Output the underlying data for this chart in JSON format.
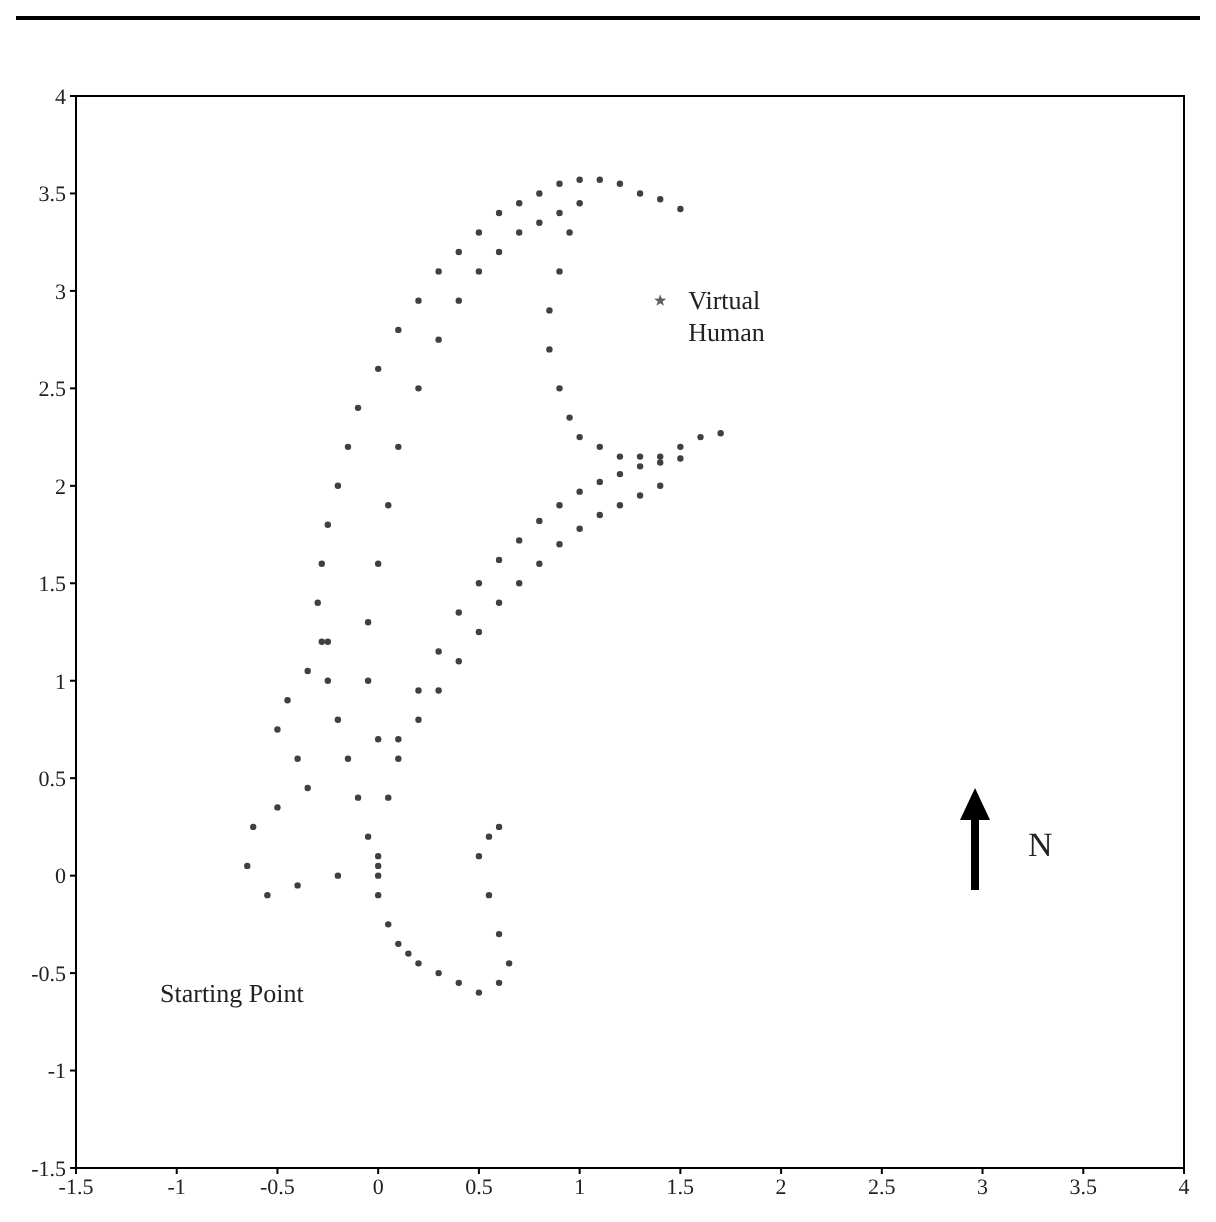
{
  "chart_data": {
    "type": "scatter",
    "marker": "circle",
    "xlim": [
      -1.5,
      4
    ],
    "ylim": [
      -1.5,
      4
    ],
    "xticks": [
      -1.5,
      -1,
      -0.5,
      0,
      0.5,
      1,
      1.5,
      2,
      2.5,
      3,
      3.5,
      4
    ],
    "yticks": [
      -1.5,
      -1,
      -0.5,
      0,
      0.5,
      1,
      1.5,
      2,
      2.5,
      3,
      3.5,
      4
    ],
    "annotations": [
      {
        "text": "Virtual Human",
        "x": 1.4,
        "y": 2.95
      },
      "Starting Point",
      "N"
    ],
    "series": [
      {
        "color": "#404040",
        "x": [
          0,
          -0.05,
          -0.1,
          -0.15,
          -0.2,
          -0.25,
          -0.28,
          -0.3,
          -0.28,
          -0.25,
          -0.2,
          -0.15,
          -0.1,
          0,
          0.1,
          0.2,
          0.3,
          0.4,
          0.5,
          0.6,
          0.7,
          0.8,
          0.9,
          1.0,
          1.1,
          1.2,
          1.3,
          1.4,
          1.5
        ],
        "values": [
          0,
          0.2,
          0.4,
          0.6,
          0.8,
          1.0,
          1.2,
          1.4,
          1.6,
          1.8,
          2.0,
          2.2,
          2.4,
          2.6,
          2.8,
          2.95,
          3.1,
          3.2,
          3.3,
          3.4,
          3.45,
          3.5,
          3.55,
          3.57,
          3.57,
          3.55,
          3.5,
          3.47,
          3.42
        ]
      },
      {
        "color": "#404040",
        "x": [
          0.0,
          -0.05,
          -0.05,
          0,
          0.05,
          0.1,
          0.2,
          0.3,
          0.4,
          0.5,
          0.6,
          0.7,
          0.8,
          0.9
        ],
        "values": [
          0.7,
          1.0,
          1.3,
          1.6,
          1.9,
          2.2,
          2.5,
          2.75,
          2.95,
          3.1,
          3.2,
          3.3,
          3.35,
          3.4
        ]
      },
      {
        "color": "#404040",
        "x": [
          1.0,
          0.95,
          0.9,
          0.85,
          0.85,
          0.9,
          0.95,
          1.0,
          1.1,
          1.2,
          1.3,
          1.4,
          1.5,
          1.6,
          1.7
        ],
        "values": [
          3.45,
          3.3,
          3.1,
          2.9,
          2.7,
          2.5,
          2.35,
          2.25,
          2.2,
          2.15,
          2.15,
          2.15,
          2.2,
          2.25,
          2.27
        ]
      },
      {
        "color": "#404040",
        "x": [
          0,
          0.05,
          0.1,
          0.2,
          0.3,
          0.4,
          0.5,
          0.6,
          0.7,
          0.8,
          0.9,
          1.0,
          1.1,
          1.2,
          1.3,
          1.4,
          1.5
        ],
        "values": [
          0.1,
          0.4,
          0.7,
          0.95,
          1.15,
          1.35,
          1.5,
          1.62,
          1.72,
          1.82,
          1.9,
          1.97,
          2.02,
          2.06,
          2.1,
          2.12,
          2.14
        ]
      },
      {
        "color": "#404040",
        "x": [
          0.1,
          0.2,
          0.3,
          0.4,
          0.5,
          0.6,
          0.7,
          0.8,
          0.9,
          1.0,
          1.1,
          1.2,
          1.3,
          1.4
        ],
        "values": [
          0.6,
          0.8,
          0.95,
          1.1,
          1.25,
          1.4,
          1.5,
          1.6,
          1.7,
          1.78,
          1.85,
          1.9,
          1.95,
          2.0
        ]
      },
      {
        "color": "#404040",
        "x": [
          0,
          -0.2,
          -0.4,
          -0.55,
          -0.65,
          -0.62,
          -0.5,
          -0.35,
          -0.4,
          -0.5,
          -0.45,
          -0.35,
          -0.25
        ],
        "values": [
          0.05,
          0.0,
          -0.05,
          -0.1,
          0.05,
          0.25,
          0.35,
          0.45,
          0.6,
          0.75,
          0.9,
          1.05,
          1.2
        ]
      },
      {
        "color": "#404040",
        "x": [
          0,
          0.05,
          0.1,
          0.15,
          0.2,
          0.3,
          0.4,
          0.5,
          0.6,
          0.65,
          0.6,
          0.55,
          0.5,
          0.55,
          0.6
        ],
        "values": [
          -0.1,
          -0.25,
          -0.35,
          -0.4,
          -0.45,
          -0.5,
          -0.55,
          -0.6,
          -0.55,
          -0.45,
          -0.3,
          -0.1,
          0.1,
          0.2,
          0.25
        ]
      },
      {
        "color": "#606060",
        "marker": "star",
        "x": [
          1.4
        ],
        "values": [
          2.95
        ]
      }
    ]
  }
}
